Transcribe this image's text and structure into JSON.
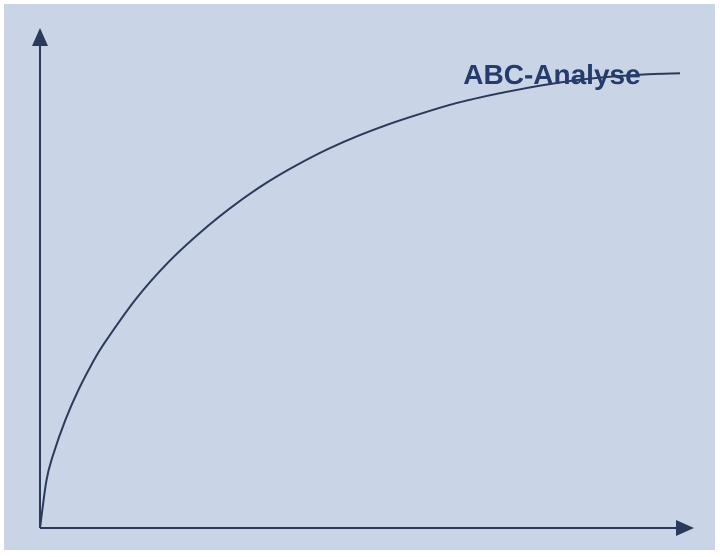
{
  "colors": {
    "background": "#c9d5e6",
    "ink": "#2b3a5a",
    "title": "#243b6b"
  },
  "chart_data": {
    "type": "line",
    "title": "ABC-Analyse",
    "xlabel": "",
    "ylabel": "",
    "xlim": [
      0,
      100
    ],
    "ylim": [
      0,
      100
    ],
    "grid": false,
    "legend": "none",
    "series": [
      {
        "x": [
          0,
          1,
          2,
          4,
          6,
          8,
          10,
          15,
          20,
          25,
          30,
          35,
          40,
          45,
          50,
          55,
          60,
          65,
          70,
          75,
          80,
          85,
          90,
          95,
          100
        ],
        "y": [
          0,
          9.5,
          14.5,
          21.8,
          27.7,
          32.7,
          37.0,
          46.0,
          53.3,
          59.3,
          64.5,
          69.0,
          72.8,
          76.1,
          78.9,
          81.3,
          83.4,
          85.3,
          86.8,
          88.1,
          89.2,
          90.1,
          90.7,
          91.1,
          91.3
        ]
      }
    ]
  }
}
